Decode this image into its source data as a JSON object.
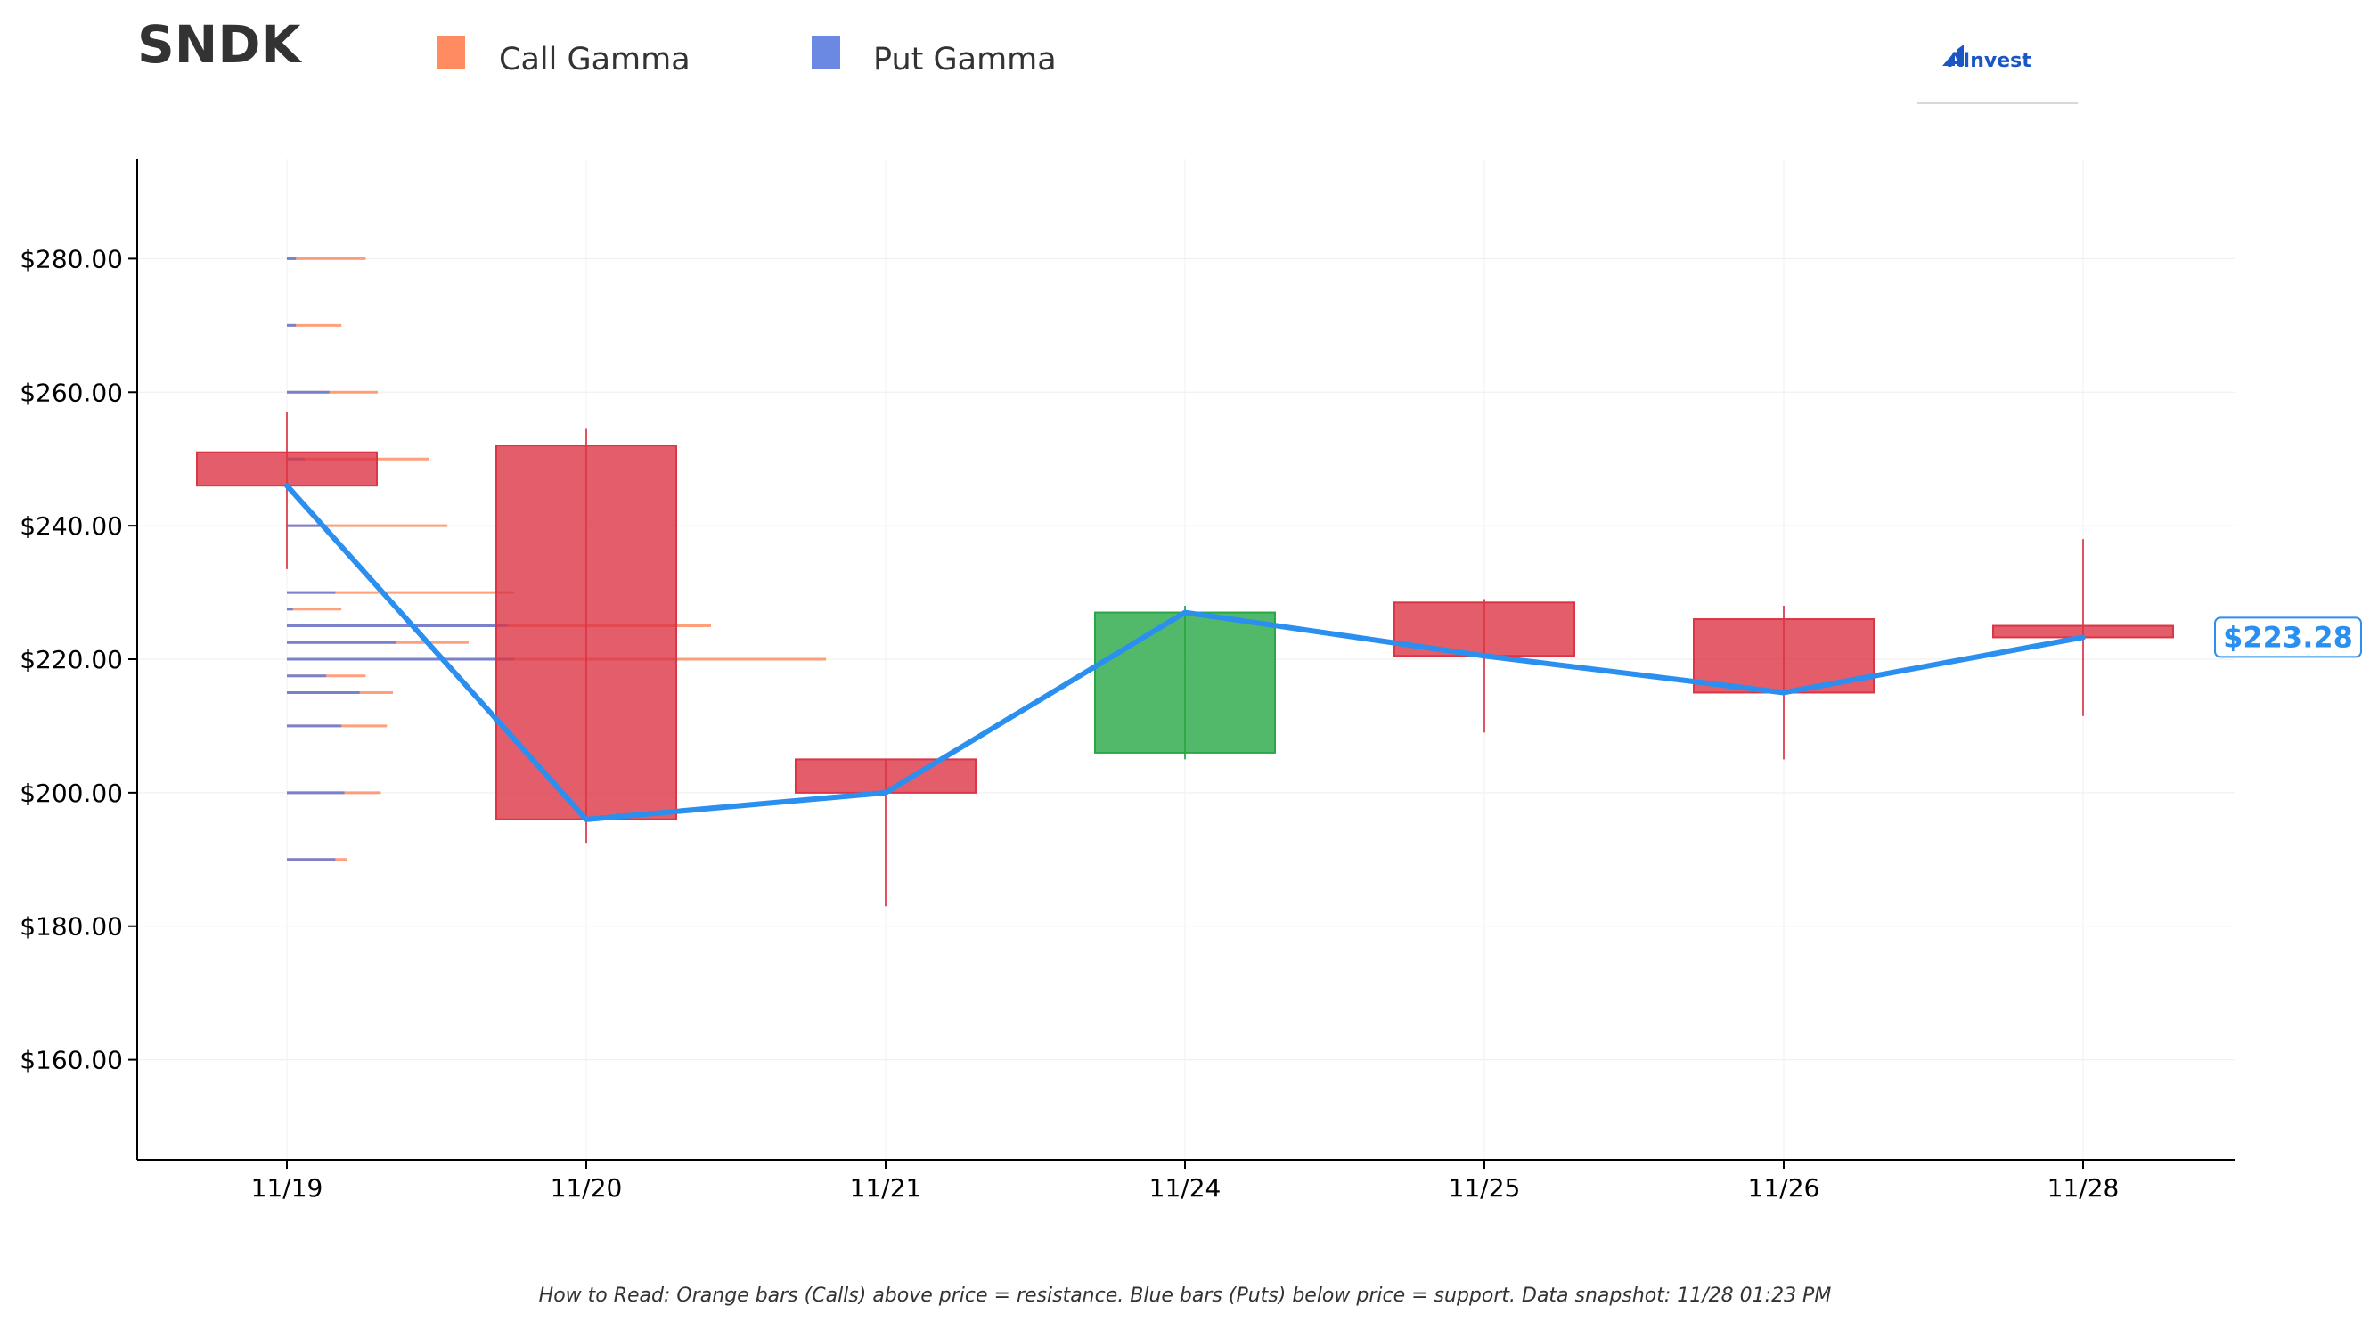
{
  "chart_data": {
    "type": "candlestick",
    "ticker": "SNDK",
    "brand": "AInvest",
    "categories": [
      "11/19",
      "11/20",
      "11/21",
      "11/24",
      "11/25",
      "11/26",
      "11/28"
    ],
    "ohlc": [
      {
        "date": "11/19",
        "open": 251.0,
        "high": 257.0,
        "low": 233.5,
        "close": 246.0
      },
      {
        "date": "11/20",
        "open": 252.0,
        "high": 254.5,
        "low": 192.5,
        "close": 196.0
      },
      {
        "date": "11/21",
        "open": 205.0,
        "high": 205.0,
        "low": 183.0,
        "close": 200.0
      },
      {
        "date": "11/24",
        "open": 206.0,
        "high": 228.0,
        "low": 205.0,
        "close": 227.0
      },
      {
        "date": "11/25",
        "open": 228.5,
        "high": 229.0,
        "low": 209.0,
        "close": 220.5
      },
      {
        "date": "11/26",
        "open": 226.0,
        "high": 228.0,
        "low": 205.0,
        "close": 215.0
      },
      {
        "date": "11/28",
        "open": 225.0,
        "high": 238.0,
        "low": 211.5,
        "close": 223.28
      }
    ],
    "close_line": [
      246.0,
      196.0,
      200.0,
      227.0,
      220.5,
      215.0,
      223.28
    ],
    "current_price_label": "$223.28",
    "gamma_levels": [
      {
        "strike": 280,
        "call": 2.6,
        "put": 0.3
      },
      {
        "strike": 270,
        "call": 1.8,
        "put": 0.3
      },
      {
        "strike": 260,
        "call": 3.0,
        "put": 1.4
      },
      {
        "strike": 250,
        "call": 4.7,
        "put": 0.6
      },
      {
        "strike": 240,
        "call": 5.3,
        "put": 1.3
      },
      {
        "strike": 230,
        "call": 7.5,
        "put": 1.6
      },
      {
        "strike": 227.5,
        "call": 1.8,
        "put": 0.2
      },
      {
        "strike": 225,
        "call": 14.0,
        "put": 7.3
      },
      {
        "strike": 222.5,
        "call": 6.0,
        "put": 3.6
      },
      {
        "strike": 220,
        "call": 17.8,
        "put": 7.5
      },
      {
        "strike": 217.5,
        "call": 2.6,
        "put": 1.3
      },
      {
        "strike": 215,
        "call": 3.5,
        "put": 2.4
      },
      {
        "strike": 210,
        "call": 3.3,
        "put": 1.8
      },
      {
        "strike": 200,
        "call": 3.1,
        "put": 1.9
      },
      {
        "strike": 190,
        "call": 2.0,
        "put": 1.6
      }
    ],
    "series": [
      {
        "name": "Call Gamma",
        "color": "#ff7f50"
      },
      {
        "name": "Put Gamma",
        "color": "#5b7be0"
      }
    ],
    "colors": {
      "down_candle": "#dc3545",
      "up_candle": "#28a745",
      "price_line": "#2b8ff0"
    },
    "ylim": [
      145,
      295
    ],
    "yticks": [
      160,
      180,
      200,
      220,
      240,
      260,
      280
    ],
    "ytick_labels": [
      "$160.00",
      "$180.00",
      "$200.00",
      "$220.00",
      "$240.00",
      "$260.00",
      "$280.00"
    ],
    "legend_position": "top",
    "grid": true,
    "footnote": "How to Read: Orange bars (Calls) above price = resistance. Blue bars (Puts) below price = support. Data snapshot: 11/28 01:23 PM"
  }
}
